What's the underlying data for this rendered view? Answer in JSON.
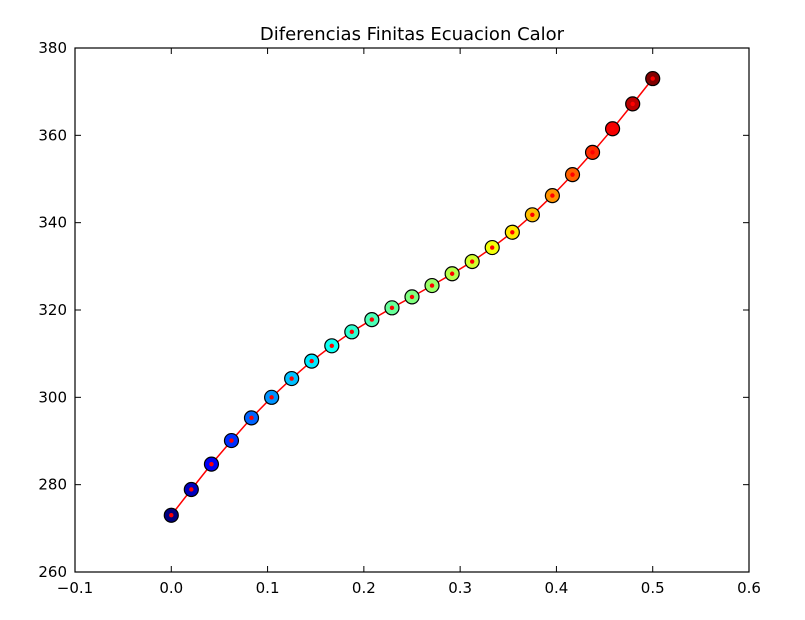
{
  "chart_data": {
    "type": "scatter",
    "title": "Diferencias Finitas Ecuacion Calor",
    "xlabel": "",
    "ylabel": "",
    "xlim": [
      -0.1,
      0.6
    ],
    "ylim": [
      260,
      380
    ],
    "xticks": [
      "−0.1",
      "0.0",
      "0.1",
      "0.2",
      "0.3",
      "0.4",
      "0.5",
      "0.6"
    ],
    "yticks": [
      "260",
      "280",
      "300",
      "320",
      "340",
      "360",
      "380"
    ],
    "grid": false,
    "line_color": "#ff0000",
    "colormap": "jet",
    "x": [
      0.0,
      0.0208,
      0.0417,
      0.0625,
      0.0833,
      0.1042,
      0.125,
      0.1458,
      0.1667,
      0.1875,
      0.2083,
      0.2292,
      0.25,
      0.2708,
      0.2917,
      0.3125,
      0.3333,
      0.3542,
      0.375,
      0.3958,
      0.4167,
      0.4375,
      0.4583,
      0.4792,
      0.5
    ],
    "y": [
      273.0,
      278.9,
      284.7,
      290.1,
      295.3,
      300.0,
      304.3,
      308.3,
      311.8,
      315.0,
      317.8,
      320.5,
      323.0,
      325.6,
      328.3,
      331.1,
      334.3,
      337.8,
      341.8,
      346.2,
      351.0,
      356.1,
      361.5,
      367.2,
      373.0
    ]
  }
}
